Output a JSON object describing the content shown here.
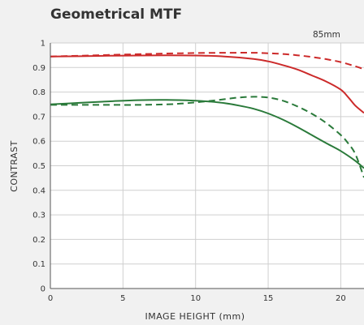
{
  "chart_data": {
    "type": "line",
    "title": "Geometrical MTF",
    "focal_length": "85mm",
    "xlabel": "IMAGE HEIGHT (mm)",
    "ylabel": "CONTRAST",
    "xlim": [
      0,
      21.6
    ],
    "ylim": [
      0,
      1
    ],
    "xticks": [
      0,
      5,
      10,
      15,
      20
    ],
    "yticks": [
      0,
      0.1,
      0.2,
      0.3,
      0.4,
      0.5,
      0.6,
      0.7,
      0.8,
      0.9,
      1
    ],
    "grid": true,
    "series": [
      {
        "color": "#cc2a2a",
        "dash": false,
        "x": [
          0,
          2,
          4,
          6,
          8,
          10,
          12,
          14,
          15,
          16,
          17,
          18,
          19,
          20,
          20.5,
          21,
          21.6
        ],
        "y": [
          0.945,
          0.946,
          0.948,
          0.949,
          0.95,
          0.949,
          0.945,
          0.935,
          0.925,
          0.91,
          0.892,
          0.868,
          0.843,
          0.81,
          0.78,
          0.745,
          0.715
        ]
      },
      {
        "color": "#cc2a2a",
        "dash": true,
        "x": [
          0,
          2,
          4,
          6,
          8,
          10,
          12,
          14,
          15,
          16,
          17,
          18,
          19,
          20,
          21,
          21.6
        ],
        "y": [
          0.945,
          0.948,
          0.951,
          0.954,
          0.957,
          0.959,
          0.96,
          0.96,
          0.958,
          0.955,
          0.95,
          0.943,
          0.934,
          0.922,
          0.905,
          0.893
        ]
      },
      {
        "color": "#2a7a3a",
        "dash": false,
        "x": [
          0,
          2,
          4,
          6,
          8,
          10,
          11,
          12,
          13,
          14,
          15,
          16,
          17,
          18,
          19,
          20,
          21,
          21.6
        ],
        "y": [
          0.75,
          0.756,
          0.762,
          0.767,
          0.768,
          0.765,
          0.761,
          0.755,
          0.745,
          0.732,
          0.713,
          0.688,
          0.658,
          0.625,
          0.592,
          0.56,
          0.52,
          0.49
        ]
      },
      {
        "color": "#2a7a3a",
        "dash": true,
        "x": [
          0,
          2,
          4,
          6,
          8,
          9,
          10,
          11,
          12,
          13,
          14,
          15,
          16,
          17,
          18,
          19,
          20,
          20.5,
          21,
          21.6
        ],
        "y": [
          0.748,
          0.748,
          0.748,
          0.748,
          0.75,
          0.753,
          0.758,
          0.764,
          0.771,
          0.778,
          0.781,
          0.778,
          0.765,
          0.742,
          0.712,
          0.674,
          0.625,
          0.592,
          0.548,
          0.452
        ]
      }
    ]
  }
}
